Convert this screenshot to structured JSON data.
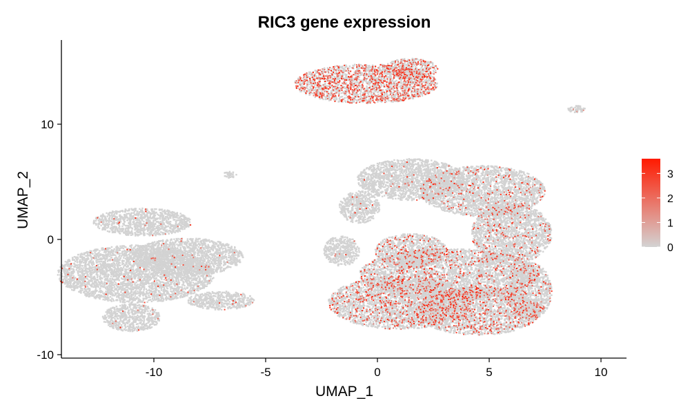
{
  "chart_data": {
    "type": "scatter",
    "title": "RIC3 gene expression",
    "xlabel": "UMAP_1",
    "ylabel": "UMAP_2",
    "xlim": [
      -14,
      11.2
    ],
    "ylim": [
      -10.3,
      17.3
    ],
    "x_ticks": [
      -10,
      -5,
      0,
      5,
      10
    ],
    "y_ticks": [
      -10,
      0,
      10
    ],
    "grid": false,
    "point_color_low": "#D3D3D3",
    "point_color_high": "#FF1A00",
    "legend": {
      "position": "right",
      "type": "colorbar",
      "range": [
        0,
        3.6
      ],
      "ticks": [
        0,
        1,
        2,
        3
      ]
    },
    "clusters": [
      {
        "cx": -10.5,
        "cy": 1.5,
        "rx": 2.2,
        "ry": 1.2,
        "expressing_fraction": 0.01
      },
      {
        "cx": -10.8,
        "cy": -3.0,
        "rx": 3.5,
        "ry": 2.5,
        "expressing_fraction": 0.02
      },
      {
        "cx": -8.5,
        "cy": -1.5,
        "rx": 2.5,
        "ry": 1.6,
        "expressing_fraction": 0.01
      },
      {
        "cx": -11.0,
        "cy": -6.8,
        "rx": 1.3,
        "ry": 1.2,
        "expressing_fraction": 0.01
      },
      {
        "cx": -7.0,
        "cy": -5.3,
        "rx": 1.5,
        "ry": 0.8,
        "expressing_fraction": 0.02
      },
      {
        "cx": -0.5,
        "cy": 13.5,
        "rx": 3.2,
        "ry": 1.7,
        "expressing_fraction": 0.35
      },
      {
        "cx": 1.5,
        "cy": 14.8,
        "rx": 1.2,
        "ry": 0.9,
        "expressing_fraction": 0.25
      },
      {
        "cx": 8.9,
        "cy": 11.3,
        "rx": 0.4,
        "ry": 0.3,
        "expressing_fraction": 0.1
      },
      {
        "cx": -6.6,
        "cy": 5.6,
        "rx": 0.3,
        "ry": 0.3,
        "expressing_fraction": 0.0
      },
      {
        "cx": 1.5,
        "cy": 5.2,
        "rx": 2.4,
        "ry": 1.8,
        "expressing_fraction": 0.02
      },
      {
        "cx": 4.7,
        "cy": 4.2,
        "rx": 2.8,
        "ry": 2.2,
        "expressing_fraction": 0.06
      },
      {
        "cx": 6.0,
        "cy": 0.5,
        "rx": 1.8,
        "ry": 2.6,
        "expressing_fraction": 0.08
      },
      {
        "cx": 3.2,
        "cy": -3.0,
        "rx": 4.0,
        "ry": 2.2,
        "expressing_fraction": 0.12
      },
      {
        "cx": 1.0,
        "cy": -5.5,
        "rx": 3.2,
        "ry": 2.3,
        "expressing_fraction": 0.15
      },
      {
        "cx": 4.5,
        "cy": -6.2,
        "rx": 2.8,
        "ry": 2.1,
        "expressing_fraction": 0.18
      },
      {
        "cx": 6.8,
        "cy": -4.5,
        "rx": 1.0,
        "ry": 2.5,
        "expressing_fraction": 0.06
      },
      {
        "cx": 1.5,
        "cy": -1.0,
        "rx": 1.6,
        "ry": 1.5,
        "expressing_fraction": 0.1
      },
      {
        "cx": -0.8,
        "cy": 2.8,
        "rx": 0.9,
        "ry": 1.4,
        "expressing_fraction": 0.02
      },
      {
        "cx": -1.6,
        "cy": -1.0,
        "rx": 0.8,
        "ry": 1.3,
        "expressing_fraction": 0.02
      }
    ]
  }
}
